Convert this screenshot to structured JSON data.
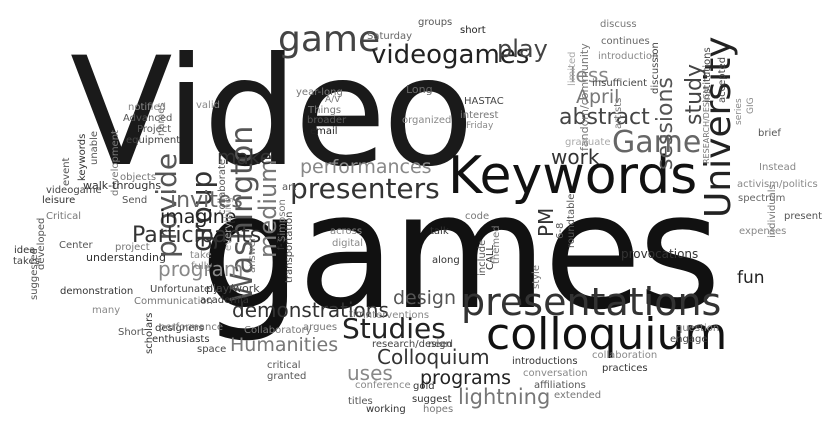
{
  "words": [
    {
      "id": "video",
      "text": "Video",
      "tone": "#1a1a1a"
    },
    {
      "id": "games",
      "text": "games",
      "tone": "#111111"
    },
    {
      "id": "keywords",
      "text": "Keywords",
      "tone": "#111111"
    },
    {
      "id": "colloquium",
      "text": "colloquium",
      "tone": "#111111"
    },
    {
      "id": "presentations",
      "text": "presentations",
      "tone": "#333333"
    },
    {
      "id": "presenters",
      "text": "presenters",
      "tone": "#333333"
    },
    {
      "id": "university",
      "text": "University",
      "tone": "#222222"
    },
    {
      "id": "game",
      "text": "game",
      "tone": "#444444"
    },
    {
      "id": "game2",
      "text": "Game",
      "tone": "#666666"
    },
    {
      "id": "videogames",
      "text": "videogames",
      "tone": "#222222"
    },
    {
      "id": "play",
      "text": "play",
      "tone": "#444444"
    },
    {
      "id": "studies",
      "text": "Studies",
      "tone": "#222222"
    },
    {
      "id": "washington",
      "text": "Washington",
      "tone": "#555555"
    },
    {
      "id": "medium",
      "text": "medium",
      "tone": "#777777"
    },
    {
      "id": "group",
      "text": "group",
      "tone": "#333333"
    },
    {
      "id": "provide",
      "text": "provide",
      "tone": "#555555"
    },
    {
      "id": "participants",
      "text": "Participants",
      "tone": "#333333"
    },
    {
      "id": "invites",
      "text": "invites",
      "tone": "#666666"
    },
    {
      "id": "imagine",
      "text": "imagine",
      "tone": "#222222"
    },
    {
      "id": "program",
      "text": "program",
      "tone": "#888888"
    },
    {
      "id": "make",
      "text": "make",
      "tone": "#333333"
    },
    {
      "id": "performances",
      "text": "performances",
      "tone": "#888888"
    },
    {
      "id": "demonstrations",
      "text": "demonstrations",
      "tone": "#333333"
    },
    {
      "id": "humanities",
      "text": "Humanities",
      "tone": "#777777"
    },
    {
      "id": "design",
      "text": "design",
      "tone": "#555555"
    },
    {
      "id": "colloquium2",
      "text": "Colloquium",
      "tone": "#333333"
    },
    {
      "id": "programs",
      "text": "programs",
      "tone": "#222222"
    },
    {
      "id": "lightning",
      "text": "lightning",
      "tone": "#777777"
    },
    {
      "id": "uses",
      "text": "uses",
      "tone": "#888888"
    },
    {
      "id": "abstract",
      "text": "abstract",
      "tone": "#444444"
    },
    {
      "id": "sessions",
      "text": "sessions",
      "tone": "#555555"
    },
    {
      "id": "study",
      "text": "study",
      "tone": "#444444"
    },
    {
      "id": "april",
      "text": "April",
      "tone": "#777777"
    },
    {
      "id": "less",
      "text": "less",
      "tone": "#888888"
    },
    {
      "id": "work",
      "text": "work",
      "tone": "#333333"
    },
    {
      "id": "pm",
      "text": "PM",
      "tone": "#333333"
    },
    {
      "id": "fun",
      "text": "fun",
      "tone": "#222222"
    },
    {
      "id": "provocations",
      "text": "provocations",
      "tone": "#333333"
    },
    {
      "id": "long",
      "text": "Long",
      "tone": "#666666"
    },
    {
      "id": "hastac",
      "text": "HASTAC",
      "tone": "#444444"
    },
    {
      "id": "saturday",
      "text": "Saturday",
      "tone": "#666666"
    },
    {
      "id": "groups",
      "text": "groups",
      "tone": "#555555"
    },
    {
      "id": "short",
      "text": "short",
      "tone": "#222222"
    },
    {
      "id": "discuss",
      "text": "discuss",
      "tone": "#777777"
    },
    {
      "id": "continues",
      "text": "continues",
      "tone": "#666666"
    },
    {
      "id": "introduction",
      "text": "introduction",
      "tone": "#888888"
    },
    {
      "id": "insufficient",
      "text": "insufficient",
      "tone": "#444444"
    },
    {
      "id": "fandom",
      "text": "fandom/community",
      "tone": "#777777"
    },
    {
      "id": "limited",
      "text": "limited",
      "tone": "#aaaaaa"
    },
    {
      "id": "discussion",
      "text": "discussion",
      "tone": "#444444"
    },
    {
      "id": "artists",
      "text": "artists",
      "tone": "#777777"
    },
    {
      "id": "institutions",
      "text": "institutions",
      "tone": "#444444"
    },
    {
      "id": "accepted",
      "text": "accepted",
      "tone": "#444444"
    },
    {
      "id": "research_design",
      "text": "RESEARCH/DESIGN",
      "tone": "#777777"
    },
    {
      "id": "series",
      "text": "series",
      "tone": "#888888"
    },
    {
      "id": "gig",
      "text": "GIG",
      "tone": "#888888"
    },
    {
      "id": "brief",
      "text": "brief",
      "tone": "#555555"
    },
    {
      "id": "activism",
      "text": "activism/politics",
      "tone": "#888888"
    },
    {
      "id": "spectrum",
      "text": "spectrum",
      "tone": "#666666"
    },
    {
      "id": "present",
      "text": "present",
      "tone": "#555555"
    },
    {
      "id": "instead",
      "text": "Instead",
      "tone": "#888888"
    },
    {
      "id": "individuals",
      "text": "individuals",
      "tone": "#777777"
    },
    {
      "id": "expenses",
      "text": "expenses",
      "tone": "#888888"
    },
    {
      "id": "interest",
      "text": "interest",
      "tone": "#777777"
    },
    {
      "id": "friday",
      "text": "Friday",
      "tone": "#888888"
    },
    {
      "id": "organized",
      "text": "organized",
      "tone": "#888888"
    },
    {
      "id": "graduate",
      "text": "graduate",
      "tone": "#aaaaaa"
    },
    {
      "id": "year_long",
      "text": "year-long",
      "tone": "#777777"
    },
    {
      "id": "valid",
      "text": "valid",
      "tone": "#888888"
    },
    {
      "id": "av",
      "text": "A/V",
      "tone": "#777777"
    },
    {
      "id": "things",
      "text": "Things",
      "tone": "#777777"
    },
    {
      "id": "broader",
      "text": "broader",
      "tone": "#555555"
    },
    {
      "id": "email",
      "text": "email",
      "tone": "#222222"
    },
    {
      "id": "names",
      "text": "names",
      "tone": "#777777"
    },
    {
      "id": "notified",
      "text": "notified",
      "tone": "#888888"
    },
    {
      "id": "advanced",
      "text": "Advanced",
      "tone": "#555555"
    },
    {
      "id": "project",
      "text": "Project",
      "tone": "#555555"
    },
    {
      "id": "equipment",
      "text": "equipment",
      "tone": "#444444"
    },
    {
      "id": "keywords_small",
      "text": "keywords",
      "tone": "#333333"
    },
    {
      "id": "unable",
      "text": "unable",
      "tone": "#555555"
    },
    {
      "id": "event",
      "text": "event",
      "tone": "#555555"
    },
    {
      "id": "development",
      "text": "development",
      "tone": "#777777"
    },
    {
      "id": "videogame",
      "text": "videogame",
      "tone": "#444444"
    },
    {
      "id": "leisure",
      "text": "leisure",
      "tone": "#333333"
    },
    {
      "id": "walkthroughs",
      "text": "walk-throughs",
      "tone": "#333333"
    },
    {
      "id": "objects",
      "text": "objects",
      "tone": "#777777"
    },
    {
      "id": "everything",
      "text": "everything",
      "tone": "#aaaaaa"
    },
    {
      "id": "send",
      "text": "Send",
      "tone": "#555555"
    },
    {
      "id": "collaborate",
      "text": "collaborate",
      "tone": "#555555"
    },
    {
      "id": "art",
      "text": "art",
      "tone": "#555555"
    },
    {
      "id": "critical",
      "text": "Critical",
      "tone": "#777777"
    },
    {
      "id": "developed",
      "text": "developed",
      "tone": "#555555"
    },
    {
      "id": "idea",
      "text": "idea",
      "tone": "#333333"
    },
    {
      "id": "center",
      "text": "Center",
      "tone": "#555555"
    },
    {
      "id": "takes",
      "text": "takes",
      "tone": "#444444"
    },
    {
      "id": "project2",
      "text": "project",
      "tone": "#777777"
    },
    {
      "id": "understanding",
      "text": "understanding",
      "tone": "#333333"
    },
    {
      "id": "suggested",
      "text": "suggested",
      "tone": "#555555"
    },
    {
      "id": "demonstration",
      "text": "demonstration",
      "tone": "#333333"
    },
    {
      "id": "many",
      "text": "many",
      "tone": "#888888"
    },
    {
      "id": "short2",
      "text": "Short",
      "tone": "#555555"
    },
    {
      "id": "scholars",
      "text": "scholars",
      "tone": "#333333"
    },
    {
      "id": "designers",
      "text": "designers",
      "tone": "#333333"
    },
    {
      "id": "enthusiasts",
      "text": "enthusiasts",
      "tone": "#333333"
    },
    {
      "id": "communication",
      "text": "Communication",
      "tone": "#777777"
    },
    {
      "id": "performance",
      "text": "performance",
      "tone": "#777777"
    },
    {
      "id": "space",
      "text": "space",
      "tone": "#444444"
    },
    {
      "id": "unfortunately",
      "text": "Unfortunately",
      "tone": "#444444"
    },
    {
      "id": "take",
      "text": "take",
      "tone": "#888888"
    },
    {
      "id": "fully",
      "text": "fully",
      "tone": "#888888"
    },
    {
      "id": "answer",
      "text": "answer",
      "tone": "#777777"
    },
    {
      "id": "playwork",
      "text": "play/work",
      "tone": "#444444"
    },
    {
      "id": "academia",
      "text": "academia",
      "tone": "#333333"
    },
    {
      "id": "collaboratory",
      "text": "Collaboratory",
      "tone": "#777777"
    },
    {
      "id": "critical2",
      "text": "critical",
      "tone": "#555555"
    },
    {
      "id": "granted",
      "text": "granted",
      "tone": "#555555"
    },
    {
      "id": "simpson",
      "text": "Simpson",
      "tone": "#777777"
    },
    {
      "id": "f3",
      "text": "f-3",
      "tone": "#333333"
    },
    {
      "id": "transportation",
      "text": "transportation",
      "tone": "#444444"
    },
    {
      "id": "across",
      "text": "across",
      "tone": "#888888"
    },
    {
      "id": "digital",
      "text": "digital",
      "tone": "#888888"
    },
    {
      "id": "time",
      "text": "time",
      "tone": "#555555"
    },
    {
      "id": "interventions",
      "text": "interventions",
      "tone": "#888888"
    },
    {
      "id": "argues",
      "text": "argues",
      "tone": "#777777"
    },
    {
      "id": "need",
      "text": "need",
      "tone": "#555555"
    },
    {
      "id": "research_design2",
      "text": "research/design",
      "tone": "#444444"
    },
    {
      "id": "conference",
      "text": "conference",
      "tone": "#888888"
    },
    {
      "id": "titles",
      "text": "titles",
      "tone": "#555555"
    },
    {
      "id": "gold",
      "text": "gold",
      "tone": "#333333"
    },
    {
      "id": "working",
      "text": "working",
      "tone": "#333333"
    },
    {
      "id": "suggest",
      "text": "suggest",
      "tone": "#333333"
    },
    {
      "id": "hopes",
      "text": "hopes",
      "tone": "#777777"
    },
    {
      "id": "talk",
      "text": "talk",
      "tone": "#333333"
    },
    {
      "id": "along",
      "text": "along",
      "tone": "#333333"
    },
    {
      "id": "code",
      "text": "code",
      "tone": "#777777"
    },
    {
      "id": "include",
      "text": "include",
      "tone": "#555555"
    },
    {
      "id": "call",
      "text": "CALL",
      "tone": "#333333"
    },
    {
      "id": "themed",
      "text": "themed",
      "tone": "#777777"
    },
    {
      "id": "sixeight",
      "text": "6-8",
      "tone": "#555555"
    },
    {
      "id": "roundtable",
      "text": "roundtable",
      "tone": "#555555"
    },
    {
      "id": "style",
      "text": "style",
      "tone": "#777777"
    },
    {
      "id": "introductions",
      "text": "introductions",
      "tone": "#333333"
    },
    {
      "id": "conversation",
      "text": "conversation",
      "tone": "#888888"
    },
    {
      "id": "affiliations",
      "text": "affiliations",
      "tone": "#555555"
    },
    {
      "id": "extended",
      "text": "extended",
      "tone": "#777777"
    },
    {
      "id": "practices",
      "text": "practices",
      "tone": "#333333"
    },
    {
      "id": "collaboration",
      "text": "collaboration",
      "tone": "#888888"
    },
    {
      "id": "engage",
      "text": "engage",
      "tone": "#444444"
    },
    {
      "id": "question",
      "text": "question",
      "tone": "#777777"
    }
  ]
}
